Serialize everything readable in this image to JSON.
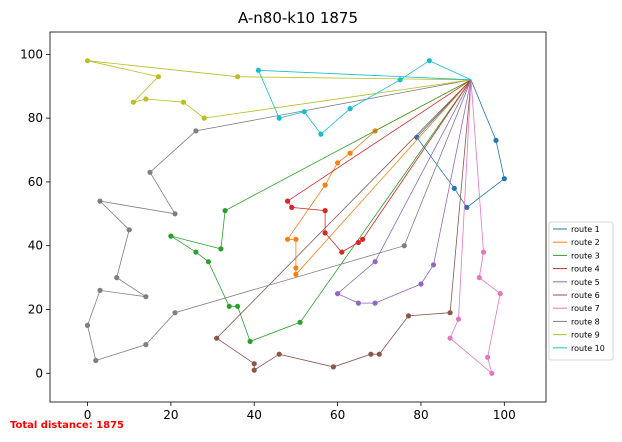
{
  "chart_data": {
    "type": "line",
    "title": "A-n80-k10 1875",
    "xlabel": "",
    "ylabel": "",
    "xlim": [
      -9,
      110
    ],
    "ylim": [
      -9,
      107
    ],
    "xticks": [
      0,
      20,
      40,
      60,
      80,
      100
    ],
    "yticks": [
      0,
      20,
      40,
      60,
      80,
      100
    ],
    "grid": false,
    "legend_position": "right",
    "depot": [
      92,
      92
    ],
    "colors": [
      "#1f77b4",
      "#ff7f0e",
      "#2ca02c",
      "#d62728",
      "#9467bd",
      "#8c564b",
      "#e377c2",
      "#7f7f7f",
      "#bcbd22",
      "#17becf"
    ],
    "series": [
      {
        "name": "route 1",
        "points": [
          [
            92,
            92
          ],
          [
            98,
            73
          ],
          [
            100,
            61
          ],
          [
            91,
            52
          ],
          [
            88,
            58
          ],
          [
            79,
            74
          ],
          [
            92,
            92
          ]
        ]
      },
      {
        "name": "route 2",
        "points": [
          [
            92,
            92
          ],
          [
            69,
            76
          ],
          [
            63,
            69
          ],
          [
            60,
            66
          ],
          [
            57,
            59
          ],
          [
            48,
            42
          ],
          [
            50,
            42
          ],
          [
            50,
            33
          ],
          [
            50,
            31
          ],
          [
            92,
            92
          ]
        ]
      },
      {
        "name": "route 3",
        "points": [
          [
            92,
            92
          ],
          [
            33,
            51
          ],
          [
            32,
            39
          ],
          [
            20,
            43
          ],
          [
            26,
            38
          ],
          [
            29,
            35
          ],
          [
            34,
            21
          ],
          [
            36,
            21
          ],
          [
            39,
            10
          ],
          [
            51,
            16
          ],
          [
            92,
            92
          ]
        ]
      },
      {
        "name": "route 4",
        "points": [
          [
            92,
            92
          ],
          [
            48,
            54
          ],
          [
            49,
            52
          ],
          [
            57,
            51
          ],
          [
            57,
            44
          ],
          [
            61,
            38
          ],
          [
            65,
            41
          ],
          [
            66,
            42
          ],
          [
            92,
            92
          ]
        ]
      },
      {
        "name": "route 5",
        "points": [
          [
            92,
            92
          ],
          [
            69,
            35
          ],
          [
            60,
            25
          ],
          [
            65,
            22
          ],
          [
            69,
            22
          ],
          [
            80,
            28
          ],
          [
            83,
            34
          ],
          [
            92,
            92
          ]
        ]
      },
      {
        "name": "route 6",
        "points": [
          [
            92,
            92
          ],
          [
            31,
            11
          ],
          [
            40,
            3
          ],
          [
            40,
            1
          ],
          [
            46,
            6
          ],
          [
            59,
            2
          ],
          [
            68,
            6
          ],
          [
            70,
            6
          ],
          [
            77,
            18
          ],
          [
            87,
            19
          ],
          [
            92,
            92
          ]
        ]
      },
      {
        "name": "route 7",
        "points": [
          [
            92,
            92
          ],
          [
            95,
            38
          ],
          [
            94,
            30
          ],
          [
            99,
            25
          ],
          [
            96,
            5
          ],
          [
            97,
            0
          ],
          [
            87,
            11
          ],
          [
            89,
            17
          ],
          [
            92,
            92
          ]
        ]
      },
      {
        "name": "route 8",
        "points": [
          [
            92,
            92
          ],
          [
            26,
            76
          ],
          [
            15,
            63
          ],
          [
            21,
            50
          ],
          [
            3,
            54
          ],
          [
            10,
            45
          ],
          [
            7,
            30
          ],
          [
            14,
            24
          ],
          [
            3,
            26
          ],
          [
            0,
            15
          ],
          [
            2,
            4
          ],
          [
            14,
            9
          ],
          [
            21,
            19
          ],
          [
            76,
            40
          ],
          [
            92,
            92
          ]
        ]
      },
      {
        "name": "route 9",
        "points": [
          [
            92,
            92
          ],
          [
            28,
            80
          ],
          [
            23,
            85
          ],
          [
            14,
            86
          ],
          [
            11,
            85
          ],
          [
            17,
            93
          ],
          [
            0,
            98
          ],
          [
            36,
            93
          ],
          [
            92,
            92
          ]
        ]
      },
      {
        "name": "route 10",
        "points": [
          [
            92,
            92
          ],
          [
            82,
            98
          ],
          [
            75,
            92
          ],
          [
            63,
            83
          ],
          [
            56,
            75
          ],
          [
            52,
            82
          ],
          [
            46,
            80
          ],
          [
            41,
            95
          ],
          [
            92,
            92
          ]
        ]
      }
    ]
  },
  "footer": {
    "total_distance": "Total distance: 1875"
  }
}
